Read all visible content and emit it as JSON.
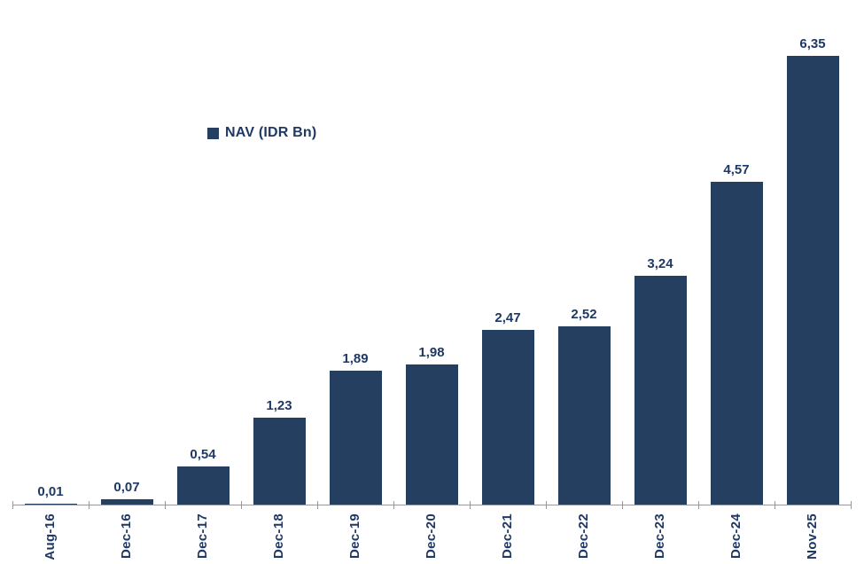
{
  "chart_data": {
    "type": "bar",
    "title": "",
    "xlabel": "",
    "ylabel": "",
    "legend": "NAV (IDR Bn)",
    "legend_position": "upper-left-of-plot",
    "categories": [
      "Aug-16",
      "Dec-16",
      "Dec-17",
      "Dec-18",
      "Dec-19",
      "Dec-20",
      "Dec-21",
      "Dec-22",
      "Dec-23",
      "Dec-24",
      "Nov-25"
    ],
    "values": [
      0.01,
      0.07,
      0.54,
      1.23,
      1.89,
      1.98,
      2.47,
      2.52,
      3.24,
      4.57,
      6.35
    ],
    "value_labels": [
      "0,01",
      "0,07",
      "0,54",
      "1,23",
      "1,89",
      "1,98",
      "2,47",
      "2,52",
      "3,24",
      "4,57",
      "6,35"
    ],
    "decimal_separator": ",",
    "ylim": [
      0,
      7
    ],
    "grid": false,
    "y_axis_visible": false,
    "bar_color": "#243F60",
    "text_color": "#1F3864",
    "axis_color": "#999999",
    "background_color": "#FFFFFF"
  }
}
